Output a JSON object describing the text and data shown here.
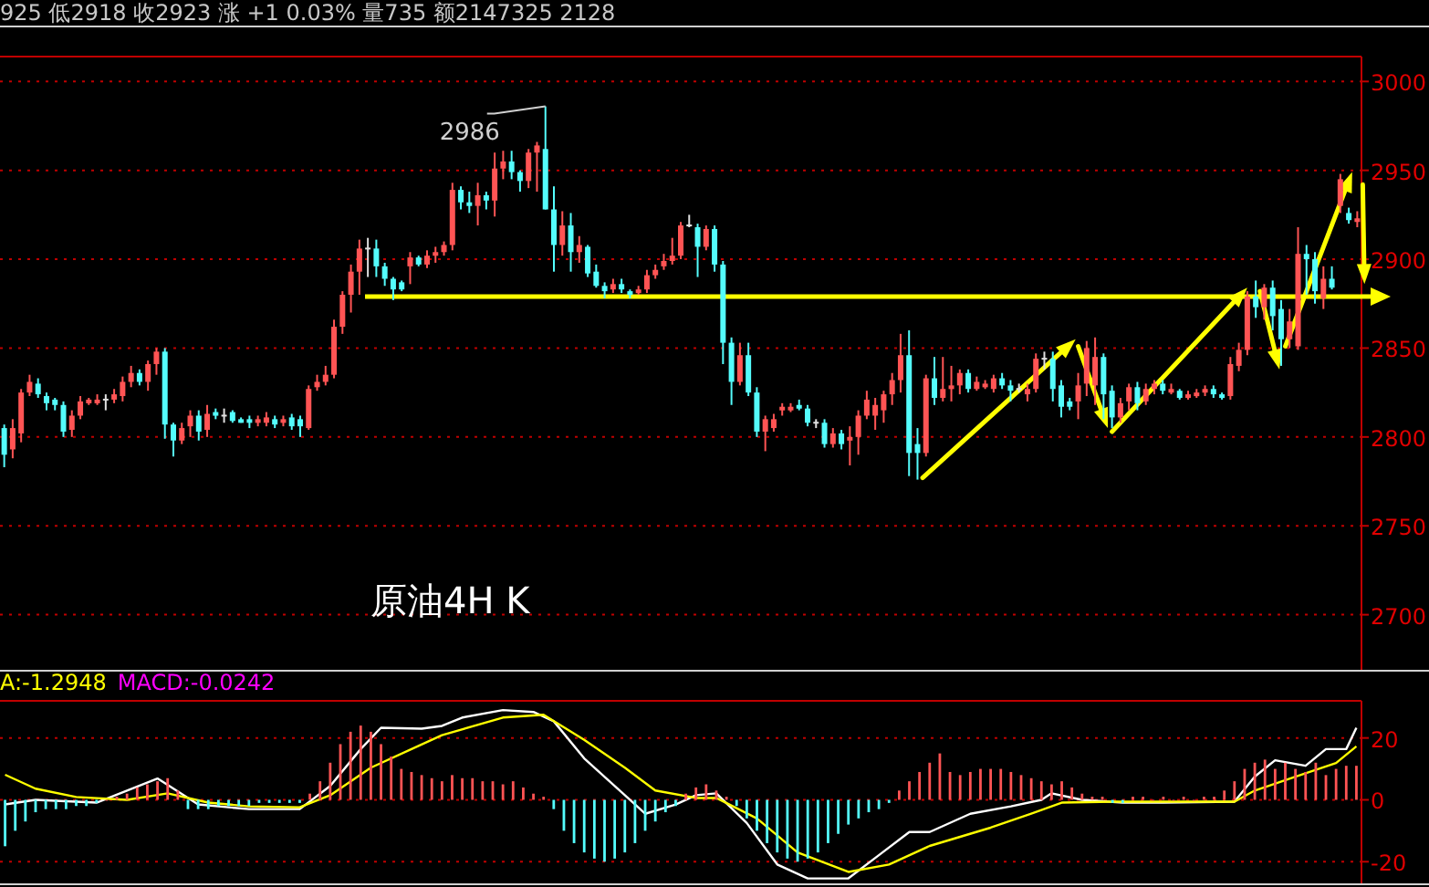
{
  "chart_data": [
    {
      "type": "candlestick",
      "title": "原油4H K",
      "subtitle": "925 低2918 收2923 涨 +1 0.03% 量735 额2147325 2128",
      "categories": [
        null,
        null,
        null,
        null,
        null,
        null,
        null,
        null,
        null,
        null,
        null,
        null,
        null,
        null,
        null,
        null,
        null,
        null,
        null,
        null,
        null,
        null,
        null,
        null,
        null,
        null,
        null,
        null,
        null,
        null,
        null,
        null,
        null,
        null,
        null,
        null,
        null,
        null,
        null,
        null,
        null,
        null,
        null,
        null,
        null,
        null,
        null,
        null,
        null,
        null,
        null,
        null,
        null,
        null,
        null,
        null,
        null,
        null,
        null,
        null,
        null,
        null,
        null,
        null,
        null,
        null,
        null,
        null,
        null,
        null,
        null,
        null,
        null,
        null,
        null,
        null,
        null,
        null,
        null,
        null,
        null,
        null,
        null,
        null,
        null,
        null,
        null,
        null,
        null,
        null,
        null,
        null,
        null,
        null,
        null,
        null,
        null,
        null,
        null,
        null,
        null,
        null,
        null,
        null,
        null,
        null,
        null,
        null,
        null,
        null,
        null,
        null,
        null,
        null,
        null,
        null,
        null,
        null,
        null,
        null,
        null,
        null,
        null,
        null,
        null,
        null,
        null,
        null,
        null,
        null,
        null,
        null,
        null,
        null,
        null,
        null,
        null,
        null,
        null,
        null,
        null,
        null,
        null,
        null,
        null,
        null,
        null,
        null,
        null,
        null,
        null,
        null,
        null,
        null,
        null,
        null,
        null,
        null,
        null,
        null,
        null
      ],
      "ohlc": [
        [
          2805,
          2807,
          2783,
          2790
        ],
        [
          2793,
          2810,
          2788,
          2805
        ],
        [
          2802,
          2827,
          2797,
          2825
        ],
        [
          2825,
          2835,
          2823,
          2831
        ],
        [
          2830,
          2833,
          2822,
          2824
        ],
        [
          2823,
          2825,
          2815,
          2819
        ],
        [
          2821,
          2822,
          2815,
          2818
        ],
        [
          2818,
          2820,
          2800,
          2803
        ],
        [
          2804,
          2815,
          2800,
          2812
        ],
        [
          2812,
          2823,
          2810,
          2820
        ],
        [
          2820,
          2822,
          2818,
          2821
        ],
        [
          2820,
          2824,
          2818,
          2821
        ],
        [
          2821,
          2824,
          2815,
          2821
        ],
        [
          2821,
          2827,
          2819,
          2824
        ],
        [
          2823,
          2834,
          2820,
          2831
        ],
        [
          2831,
          2840,
          2828,
          2836
        ],
        [
          2836,
          2838,
          2829,
          2831
        ],
        [
          2831,
          2843,
          2826,
          2841
        ],
        [
          2841,
          2850,
          2835,
          2848
        ],
        [
          2848,
          2850,
          2799,
          2807
        ],
        [
          2807,
          2808,
          2789,
          2798
        ],
        [
          2798,
          2808,
          2796,
          2805
        ],
        [
          2806,
          2815,
          2800,
          2812
        ],
        [
          2812,
          2815,
          2798,
          2803
        ],
        [
          2804,
          2818,
          2800,
          2813
        ],
        [
          2814,
          2816,
          2810,
          2812
        ],
        [
          2812,
          2816,
          2808,
          2812
        ],
        [
          2814,
          2815,
          2808,
          2809
        ],
        [
          2810,
          2811,
          2808,
          2809
        ],
        [
          2810,
          2812,
          2805,
          2808
        ],
        [
          2808,
          2812,
          2806,
          2810
        ],
        [
          2808,
          2814,
          2806,
          2811
        ],
        [
          2810,
          2812,
          2805,
          2807
        ],
        [
          2808,
          2812,
          2806,
          2810
        ],
        [
          2811,
          2813,
          2804,
          2806
        ],
        [
          2810,
          2812,
          2800,
          2806
        ],
        [
          2805,
          2829,
          2804,
          2827
        ],
        [
          2828,
          2835,
          2826,
          2831
        ],
        [
          2831,
          2840,
          2829,
          2835
        ],
        [
          2835,
          2866,
          2833,
          2862
        ],
        [
          2862,
          2882,
          2858,
          2880
        ],
        [
          2880,
          2897,
          2870,
          2893
        ],
        [
          2893,
          2911,
          2880,
          2906
        ],
        [
          2906,
          2912,
          2890,
          2906
        ],
        [
          2906,
          2911,
          2890,
          2896
        ],
        [
          2896,
          2898,
          2885,
          2889
        ],
        [
          2889,
          2890,
          2877,
          2883
        ],
        [
          2887,
          2888,
          2882,
          2883
        ],
        [
          2896,
          2904,
          2886,
          2901
        ],
        [
          2901,
          2902,
          2896,
          2897
        ],
        [
          2897,
          2905,
          2895,
          2902
        ],
        [
          2902,
          2907,
          2898,
          2904
        ],
        [
          2904,
          2910,
          2902,
          2908
        ],
        [
          2908,
          2943,
          2905,
          2939
        ],
        [
          2939,
          2941,
          2928,
          2932
        ],
        [
          2932,
          2938,
          2926,
          2930
        ],
        [
          2930,
          2943,
          2919,
          2936
        ],
        [
          2936,
          2938,
          2928,
          2933
        ],
        [
          2933,
          2960,
          2924,
          2951
        ],
        [
          2951,
          2961,
          2945,
          2955
        ],
        [
          2955,
          2961,
          2945,
          2949
        ],
        [
          2949,
          2950,
          2938,
          2944
        ],
        [
          2944,
          2962,
          2940,
          2960
        ],
        [
          2960,
          2966,
          2938,
          2964
        ],
        [
          2962,
          2986,
          2928,
          2928
        ],
        [
          2928,
          2941,
          2893,
          2908
        ],
        [
          2908,
          2927,
          2902,
          2919
        ],
        [
          2919,
          2926,
          2893,
          2904
        ],
        [
          2904,
          2913,
          2898,
          2908
        ],
        [
          2907,
          2908,
          2890,
          2892
        ],
        [
          2893,
          2897,
          2884,
          2885
        ],
        [
          2885,
          2887,
          2878,
          2882
        ],
        [
          2883,
          2889,
          2881,
          2886
        ],
        [
          2886,
          2889,
          2881,
          2883
        ],
        [
          2882,
          2883,
          2878,
          2880
        ],
        [
          2881,
          2885,
          2880,
          2883
        ],
        [
          2883,
          2894,
          2881,
          2891
        ],
        [
          2891,
          2897,
          2889,
          2894
        ],
        [
          2896,
          2903,
          2894,
          2899
        ],
        [
          2899,
          2912,
          2897,
          2902
        ],
        [
          2902,
          2921,
          2900,
          2919
        ],
        [
          2919,
          2925,
          2918,
          2919
        ],
        [
          2918,
          2920,
          2890,
          2907
        ],
        [
          2907,
          2919,
          2905,
          2917
        ],
        [
          2917,
          2919,
          2893,
          2897
        ],
        [
          2897,
          2899,
          2841,
          2853
        ],
        [
          2853,
          2856,
          2818,
          2831
        ],
        [
          2831,
          2853,
          2829,
          2846
        ],
        [
          2846,
          2853,
          2823,
          2825
        ],
        [
          2825,
          2828,
          2800,
          2803
        ],
        [
          2803,
          2812,
          2792,
          2810
        ],
        [
          2805,
          2813,
          2803,
          2810
        ],
        [
          2815,
          2819,
          2812,
          2817
        ],
        [
          2816,
          2819,
          2814,
          2817
        ],
        [
          2818,
          2821,
          2815,
          2817
        ],
        [
          2816,
          2818,
          2806,
          2808
        ],
        [
          2808,
          2810,
          2805,
          2808
        ],
        [
          2808,
          2810,
          2794,
          2796
        ],
        [
          2796,
          2805,
          2794,
          2802
        ],
        [
          2802,
          2804,
          2793,
          2796
        ],
        [
          2798,
          2806,
          2784,
          2800
        ],
        [
          2800,
          2815,
          2790,
          2812
        ],
        [
          2812,
          2826,
          2810,
          2821
        ],
        [
          2812,
          2822,
          2804,
          2818
        ],
        [
          2815,
          2826,
          2808,
          2824
        ],
        [
          2824,
          2836,
          2818,
          2832
        ],
        [
          2832,
          2858,
          2825,
          2846
        ],
        [
          2846,
          2860,
          2778,
          2791
        ],
        [
          2796,
          2805,
          2776,
          2791
        ],
        [
          2791,
          2835,
          2789,
          2833
        ],
        [
          2833,
          2845,
          2818,
          2822
        ],
        [
          2822,
          2845,
          2820,
          2827
        ],
        [
          2827,
          2840,
          2820,
          2829
        ],
        [
          2829,
          2838,
          2824,
          2836
        ],
        [
          2836,
          2838,
          2825,
          2827
        ],
        [
          2827,
          2834,
          2826,
          2831
        ],
        [
          2829,
          2832,
          2827,
          2830
        ],
        [
          2827,
          2835,
          2825,
          2833
        ],
        [
          2833,
          2836,
          2827,
          2829
        ],
        [
          2829,
          2832,
          2820,
          2826
        ],
        [
          2827,
          2830,
          2825,
          2827
        ],
        [
          2824,
          2830,
          2820,
          2827
        ],
        [
          2827,
          2847,
          2825,
          2844
        ],
        [
          2844,
          2848,
          2838,
          2844
        ],
        [
          2844,
          2848,
          2820,
          2827
        ],
        [
          2829,
          2832,
          2811,
          2817
        ],
        [
          2820,
          2822,
          2815,
          2817
        ],
        [
          2820,
          2836,
          2810,
          2829
        ],
        [
          2830,
          2854,
          2823,
          2850
        ],
        [
          2829,
          2856,
          2818,
          2845
        ],
        [
          2845,
          2847,
          2810,
          2824
        ],
        [
          2826,
          2829,
          2805,
          2811
        ],
        [
          2811,
          2822,
          2808,
          2819
        ],
        [
          2820,
          2830,
          2815,
          2828
        ],
        [
          2828,
          2831,
          2815,
          2819
        ],
        [
          2820,
          2830,
          2818,
          2827
        ],
        [
          2827,
          2832,
          2824,
          2830
        ],
        [
          2830,
          2832,
          2824,
          2826
        ],
        [
          2826,
          2830,
          2824,
          2827
        ],
        [
          2826,
          2827,
          2821,
          2822
        ],
        [
          2823,
          2826,
          2821,
          2824
        ],
        [
          2824,
          2827,
          2822,
          2825
        ],
        [
          2825,
          2829,
          2823,
          2827
        ],
        [
          2827,
          2829,
          2822,
          2824
        ],
        [
          2824,
          2825,
          2821,
          2823
        ],
        [
          2823,
          2845,
          2821,
          2841
        ],
        [
          2840,
          2853,
          2837,
          2849
        ],
        [
          2849,
          2882,
          2846,
          2879
        ],
        [
          2879,
          2888,
          2867,
          2873
        ],
        [
          2873,
          2886,
          2866,
          2884
        ],
        [
          2884,
          2888,
          2860,
          2868
        ],
        [
          2872,
          2877,
          2840,
          2855
        ],
        [
          2855,
          2872,
          2850,
          2865
        ],
        [
          2851,
          2918,
          2849,
          2903
        ],
        [
          2903,
          2908,
          2880,
          2900
        ],
        [
          2900,
          2904,
          2875,
          2882
        ],
        [
          2878,
          2896,
          2872,
          2889
        ],
        [
          2889,
          2896,
          2883,
          2884
        ],
        [
          2930,
          2948,
          2926,
          2945
        ],
        [
          2926,
          2929,
          2920,
          2922
        ],
        [
          2922,
          2927,
          2918,
          2923
        ]
      ],
      "ylim": [
        2669,
        3014
      ],
      "yticks": [
        2700,
        2750,
        2800,
        2850,
        2900,
        2950,
        3000
      ],
      "grid": "y",
      "tick_labels": "y",
      "annotations": [
        "2986"
      ],
      "ref_lines": [
        {
          "axis": "y",
          "value": 2879,
          "color": "#ffff00"
        }
      ]
    },
    {
      "type": "bar",
      "annotations": [
        "A:-1.2948",
        "MACD:-0.0242"
      ],
      "categories": [
        null,
        null,
        null,
        null,
        null,
        null,
        null,
        null,
        null,
        null,
        null,
        null,
        null,
        null,
        null,
        null,
        null,
        null,
        null,
        null,
        null,
        null,
        null,
        null,
        null,
        null,
        null,
        null,
        null,
        null,
        null,
        null,
        null,
        null,
        null,
        null,
        null,
        null,
        null,
        null,
        null,
        null,
        null,
        null,
        null,
        null,
        null,
        null,
        null,
        null,
        null,
        null,
        null,
        null,
        null,
        null,
        null,
        null,
        null,
        null,
        null,
        null,
        null,
        null,
        null,
        null,
        null,
        null,
        null,
        null,
        null,
        null,
        null,
        null,
        null,
        null,
        null,
        null,
        null,
        null,
        null,
        null,
        null,
        null,
        null,
        null,
        null,
        null,
        null,
        null,
        null,
        null,
        null,
        null,
        null,
        null,
        null,
        null,
        null,
        null,
        null,
        null,
        null,
        null,
        null,
        null,
        null,
        null,
        null,
        null,
        null,
        null,
        null,
        null,
        null,
        null,
        null,
        null,
        null,
        null,
        null,
        null,
        null,
        null,
        null,
        null,
        null,
        null,
        null,
        null,
        null,
        null,
        null,
        null
      ],
      "series": [
        {
          "type": "bar",
          "colors": [
            "#54fcfc",
            "#54fcfc",
            "#54fcfc",
            "#54fcfc",
            "#54fcfc",
            "#54fcfc",
            "#54fcfc",
            "#54fcfc",
            "#54fcfc",
            "#54fcfc",
            "#ff5454",
            "#ff5454",
            "#ff5454",
            "#ff5454",
            "#ff5454",
            "#ff5454",
            "#ff5454",
            "#ff5454",
            "#54fcfc",
            "#54fcfc",
            "#54fcfc",
            "#54fcfc",
            "#54fcfc",
            "#54fcfc",
            "#54fcfc",
            "#54fcfc",
            "#54fcfc",
            "#54fcfc",
            "#54fcfc",
            "#54fcfc",
            "#ff5454",
            "#ff5454",
            "#ff5454",
            "#ff5454",
            "#ff5454",
            "#ff5454",
            "#ff5454",
            "#ff5454",
            "#ff5454",
            "#ff5454",
            "#ff5454",
            "#ff5454",
            "#ff5454",
            "#ff5454",
            "#ff5454",
            "#ff5454",
            "#ff5454",
            "#ff5454",
            "#ff5454",
            "#ff5454",
            "#ff5454",
            "#ff5454",
            "#ff5454",
            "#ff5454",
            "#54fcfc",
            "#54fcfc",
            "#54fcfc",
            "#54fcfc",
            "#54fcfc",
            "#54fcfc",
            "#54fcfc",
            "#54fcfc",
            "#54fcfc",
            "#54fcfc",
            "#54fcfc",
            "#54fcfc",
            "#54fcfc",
            "#ff5454",
            "#ff5454",
            "#ff5454",
            "#ff5454",
            "#ff5454",
            "#54fcfc",
            "#54fcfc",
            "#54fcfc",
            "#54fcfc",
            "#54fcfc",
            "#54fcfc",
            "#54fcfc",
            "#54fcfc",
            "#54fcfc",
            "#54fcfc",
            "#54fcfc",
            "#54fcfc",
            "#54fcfc",
            "#54fcfc",
            "#54fcfc",
            "#54fcfc",
            "#ff5454",
            "#ff5454",
            "#ff5454",
            "#ff5454",
            "#ff5454",
            "#ff5454",
            "#ff5454",
            "#ff5454",
            "#ff5454",
            "#ff5454",
            "#ff5454",
            "#ff5454",
            "#ff5454",
            "#ff5454",
            "#ff5454",
            "#ff5454",
            "#ff5454",
            "#ff5454",
            "#ff5454",
            "#ff5454",
            "#ff5454",
            "#54fcfc",
            "#54fcfc",
            "#ff5454",
            "#ff5454",
            "#ff5454",
            "#ff5454",
            "#ff5454",
            "#ff5454",
            "#ff5454",
            "#ff5454",
            "#ff5454",
            "#ff5454",
            "#ff5454",
            "#ff5454",
            "#ff5454",
            "#ff5454",
            "#ff5454",
            "#ff5454",
            "#ff5454",
            "#ff5454",
            "#ff5454",
            "#ff5454",
            "#ff5454",
            "#ff5454",
            "#ff5454"
          ],
          "values": [
            -15,
            -10,
            -7,
            -4,
            -3,
            -3,
            -3,
            -2,
            -2,
            -1,
            0,
            1,
            2,
            4,
            5,
            6,
            7,
            3,
            -3,
            -3,
            -3,
            -2,
            -2,
            -2,
            -2,
            -1,
            -1,
            -1,
            -1,
            -1,
            2,
            6,
            12,
            18,
            22,
            24,
            22,
            18,
            14,
            10,
            9,
            8,
            7,
            6,
            8,
            7,
            7,
            6,
            6,
            5,
            6,
            4,
            2,
            1,
            -3,
            -10,
            -14,
            -17,
            -19,
            -20,
            -19,
            -17,
            -14,
            -10,
            -7,
            -4,
            -2,
            2,
            4,
            5,
            3,
            1,
            -2,
            -6,
            -10,
            -14,
            -17,
            -19,
            -20,
            -19,
            -17,
            -14,
            -11,
            -8,
            -6,
            -4,
            -3,
            -1,
            3,
            6,
            9,
            12,
            15,
            9,
            8,
            9,
            10,
            10,
            10,
            9,
            8,
            7,
            6,
            5,
            6,
            4,
            2,
            1,
            1,
            -1,
            -1,
            1,
            1,
            0,
            1,
            0,
            1,
            0,
            1,
            1,
            3,
            6,
            10,
            12,
            13,
            10,
            12,
            10,
            9,
            12,
            8,
            10,
            11,
            11
          ]
        },
        {
          "type": "line",
          "color": "#ffffff",
          "values": [
            -1.5,
            null,
            null,
            0,
            null,
            null,
            null,
            null,
            null,
            -0.9,
            null,
            null,
            null,
            null,
            null,
            6.9,
            null,
            null,
            null,
            -1.5,
            null,
            null,
            null,
            null,
            -3,
            null,
            null,
            null,
            null,
            -3,
            null,
            null,
            4.5,
            null,
            null,
            16.4,
            null,
            23.3,
            null,
            null,
            null,
            23,
            null,
            23.9,
            null,
            26.6,
            null,
            null,
            null,
            29,
            null,
            null,
            28.4,
            null,
            25.4,
            null,
            null,
            13.4,
            null,
            null,
            null,
            1.5,
            null,
            -4.5,
            null,
            null,
            -1.5,
            null,
            1.5,
            null,
            2.1,
            null,
            null,
            -7.5,
            null,
            null,
            -20.9,
            null,
            null,
            -25.4,
            null,
            null,
            null,
            -25.4,
            null,
            null,
            -17.9,
            null,
            null,
            -10.4,
            null,
            -10.4,
            null,
            null,
            null,
            -4.5,
            null,
            null,
            null,
            -2.1,
            null,
            null,
            0,
            2.1,
            null,
            null,
            0,
            null,
            null,
            null,
            -0.9,
            null,
            null,
            null,
            -0.9,
            null,
            null,
            null,
            null,
            null,
            null,
            -0.6,
            null,
            7.5,
            null,
            12.8,
            null,
            null,
            11,
            null,
            16.4,
            null,
            16.4,
            23.3
          ]
        },
        {
          "type": "line",
          "color": "#ffff00",
          "values": [
            8.1,
            null,
            null,
            3.6,
            null,
            null,
            null,
            0.9,
            null,
            null,
            null,
            null,
            0,
            null,
            null,
            null,
            2.1,
            null,
            null,
            null,
            -0.9,
            null,
            null,
            null,
            -2.1,
            null,
            null,
            null,
            null,
            -2.4,
            null,
            null,
            1.5,
            null,
            null,
            null,
            10.4,
            null,
            null,
            null,
            16.4,
            null,
            null,
            20.9,
            null,
            null,
            null,
            null,
            null,
            26.6,
            null,
            null,
            null,
            27.5,
            null,
            null,
            null,
            19.4,
            null,
            null,
            null,
            10.4,
            null,
            null,
            3,
            null,
            null,
            null,
            0.6,
            null,
            0.6,
            null,
            null,
            null,
            -6,
            null,
            null,
            null,
            -17,
            null,
            null,
            null,
            null,
            -23.3,
            null,
            null,
            null,
            -20.9,
            null,
            null,
            null,
            -14.9,
            null,
            null,
            null,
            null,
            null,
            -9,
            null,
            null,
            null,
            -4.5,
            null,
            null,
            -0.9,
            null,
            null,
            null,
            null,
            -0.6,
            null,
            null,
            null,
            null,
            -0.6,
            null,
            null,
            null,
            null,
            null,
            null,
            -0.6,
            null,
            3,
            null,
            null,
            null,
            7.5,
            null,
            null,
            null,
            11.9,
            null,
            17.3
          ]
        }
      ],
      "ylim": [
        -27,
        32
      ],
      "yticks": [
        -20,
        0,
        20
      ],
      "grid": "y",
      "tick_labels": "y"
    }
  ]
}
